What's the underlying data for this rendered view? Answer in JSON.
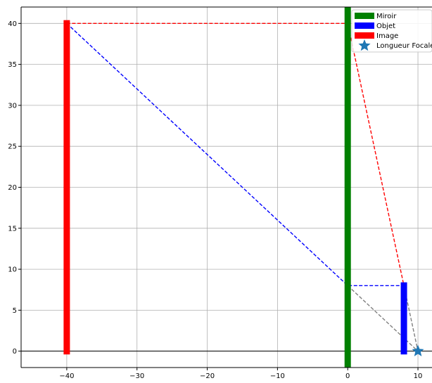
{
  "chart_data": {
    "type": "line",
    "title": "",
    "xlabel": "",
    "ylabel": "",
    "xlim": [
      -46.5,
      12.0
    ],
    "ylim": [
      -2.0,
      42.0
    ],
    "x_ticks": [
      -40,
      -30,
      -20,
      -10,
      0,
      10
    ],
    "x_tick_labels": [
      "−40",
      "−30",
      "−20",
      "−10",
      "0",
      "10"
    ],
    "y_ticks": [
      0,
      5,
      10,
      15,
      20,
      25,
      30,
      35,
      40
    ],
    "y_tick_labels": [
      "0",
      "5",
      "10",
      "15",
      "20",
      "25",
      "30",
      "35",
      "40"
    ],
    "grid": true,
    "legend_placement": "top-right",
    "reference_line": {
      "y": 0,
      "color": "#000000"
    },
    "bars": [
      {
        "name": "Miroir",
        "x": 0,
        "y0": -2.0,
        "y1": 42.0,
        "color": "#008000"
      },
      {
        "name": "Objet",
        "x": 8,
        "y0": -0.4,
        "y1": 8.4,
        "color": "#0000ff"
      },
      {
        "name": "Image",
        "x": -40,
        "y0": -0.4,
        "y1": 40.4,
        "color": "#ff0000"
      }
    ],
    "rays": [
      {
        "color": "#ff0000",
        "points": [
          [
            -40,
            40
          ],
          [
            0,
            40
          ],
          [
            8,
            8
          ]
        ]
      },
      {
        "color": "#0000ff",
        "points": [
          [
            -40,
            40
          ],
          [
            0,
            8
          ],
          [
            8,
            8
          ]
        ]
      },
      {
        "color": "#808080",
        "points": [
          [
            0,
            8
          ],
          [
            10,
            0
          ],
          [
            8,
            8
          ]
        ]
      }
    ],
    "focal_point": {
      "name": "Longueur Focale",
      "x": 10,
      "y": 0,
      "color": "#1f77b4"
    },
    "legend": [
      {
        "label": "Miroir",
        "kind": "bar",
        "color": "#008000"
      },
      {
        "label": "Objet",
        "kind": "bar",
        "color": "#0000ff"
      },
      {
        "label": "Image",
        "kind": "bar",
        "color": "#ff0000"
      },
      {
        "label": "Longueur Focale",
        "kind": "star",
        "color": "#1f77b4"
      }
    ]
  }
}
